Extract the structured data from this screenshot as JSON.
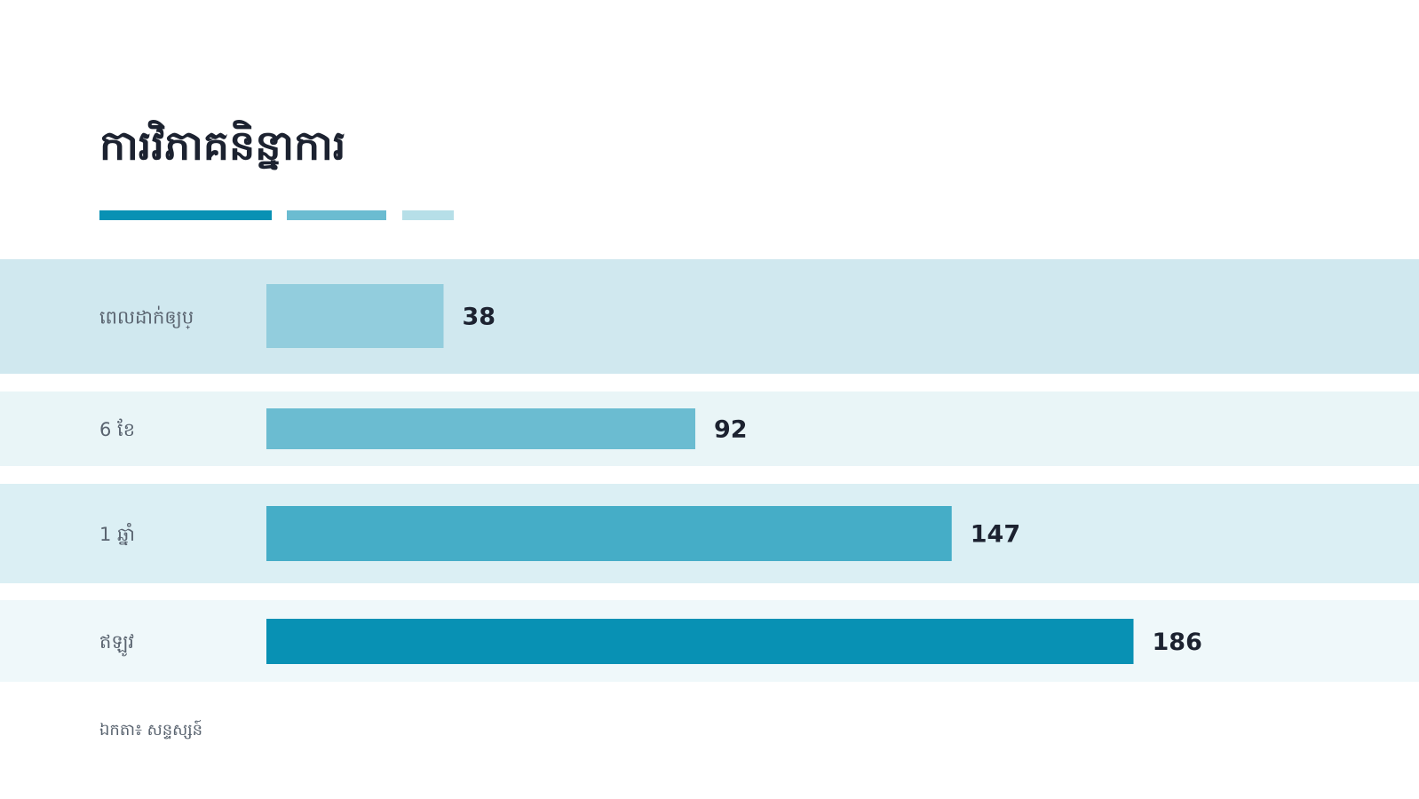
{
  "chart_data": {
    "type": "bar",
    "orientation": "horizontal",
    "title": "ការវិភាគនិន្នាការ",
    "categories": [
      "ពេលដាក់ឲ្យប្",
      "6 ខែ",
      "1 ឆ្នាំ",
      "ឥឡូវ"
    ],
    "values": [
      38,
      92,
      147,
      186
    ],
    "colors": [
      "#92cddd",
      "#6bbcd1",
      "#45adc7",
      "#0891b4"
    ],
    "footnote": "ឯកតា៖ សន្ទស្សន៍"
  }
}
